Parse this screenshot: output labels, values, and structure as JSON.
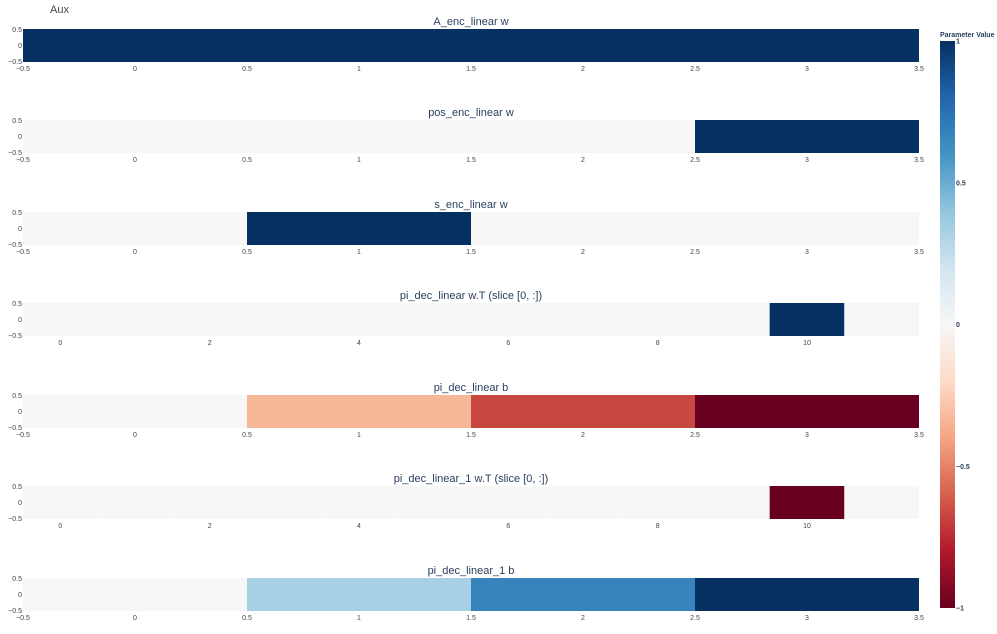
{
  "figure_title": "Aux",
  "chart_data": {
    "type": "heatmap",
    "colorscale_name": "RdBu",
    "colorscale": [
      [
        0.0,
        "#67001f"
      ],
      [
        0.1,
        "#b2182b"
      ],
      [
        0.2,
        "#d6604d"
      ],
      [
        0.3,
        "#f4a582"
      ],
      [
        0.4,
        "#fddbc7"
      ],
      [
        0.5,
        "#f7f7f7"
      ],
      [
        0.6,
        "#d1e5f0"
      ],
      [
        0.7,
        "#92c5de"
      ],
      [
        0.8,
        "#4393c3"
      ],
      [
        0.9,
        "#2166ac"
      ],
      [
        1.0,
        "#053061"
      ]
    ],
    "zrange": [
      -1,
      1
    ],
    "colorbar": {
      "title": "Parameter Value",
      "ticks": [
        {
          "value": 1,
          "label": "1"
        },
        {
          "value": 0.5,
          "label": "0.5"
        },
        {
          "value": 0,
          "label": "0"
        },
        {
          "value": -0.5,
          "label": "−0.5"
        },
        {
          "value": -1,
          "label": "−1"
        }
      ]
    },
    "panels": [
      {
        "title": "A_enc_linear w",
        "xrange": [
          -0.5,
          3.5
        ],
        "xticks": [
          "−0.5",
          "0",
          "0.5",
          "1",
          "1.5",
          "2",
          "2.5",
          "3",
          "3.5"
        ],
        "xtick_values": [
          -0.5,
          0,
          0.5,
          1,
          1.5,
          2,
          2.5,
          3,
          3.5
        ],
        "yticks": [
          "0.5",
          "0",
          "−0.5"
        ],
        "x": [
          -0.5
        ],
        "width": 4,
        "z": [
          1
        ]
      },
      {
        "title": "pos_enc_linear w",
        "xrange": [
          -0.5,
          3.5
        ],
        "xticks": [
          "−0.5",
          "0",
          "0.5",
          "1",
          "1.5",
          "2",
          "2.5",
          "3",
          "3.5"
        ],
        "xtick_values": [
          -0.5,
          0,
          0.5,
          1,
          1.5,
          2,
          2.5,
          3,
          3.5
        ],
        "yticks": [
          "0.5",
          "0",
          "−0.5"
        ],
        "x": [
          -0.5,
          0.5,
          1.5,
          2.5
        ],
        "width": 1,
        "z": [
          0,
          0,
          0,
          1
        ]
      },
      {
        "title": "s_enc_linear w",
        "xrange": [
          -0.5,
          3.5
        ],
        "xticks": [
          "−0.5",
          "0",
          "0.5",
          "1",
          "1.5",
          "2",
          "2.5",
          "3",
          "3.5"
        ],
        "xtick_values": [
          -0.5,
          0,
          0.5,
          1,
          1.5,
          2,
          2.5,
          3,
          3.5
        ],
        "yticks": [
          "0.5",
          "0",
          "−0.5"
        ],
        "x": [
          -0.5,
          0.5,
          1.5,
          2.5
        ],
        "width": 1,
        "z": [
          0,
          1,
          0,
          0
        ]
      },
      {
        "title": "pi_dec_linear w.T (slice [0, :])",
        "xrange": [
          -0.5,
          11.5
        ],
        "xticks": [
          "0",
          "2",
          "4",
          "6",
          "8",
          "10"
        ],
        "xtick_values": [
          0,
          2,
          4,
          6,
          8,
          10
        ],
        "yticks": [
          "0.5",
          "0",
          "−0.5"
        ],
        "x": [
          -0.5,
          0.5,
          1.5,
          2.5,
          3.5,
          4.5,
          5.5,
          6.5,
          7.5,
          8.5,
          9.5,
          10.5
        ],
        "width": 1,
        "z": [
          0,
          0,
          0,
          0,
          0,
          0,
          0,
          0,
          0,
          0,
          1,
          0
        ]
      },
      {
        "title": "pi_dec_linear b",
        "xrange": [
          -0.5,
          3.5
        ],
        "xticks": [
          "−0.5",
          "0",
          "0.5",
          "1",
          "1.5",
          "2",
          "2.5",
          "3",
          "3.5"
        ],
        "xtick_values": [
          -0.5,
          0,
          0.5,
          1,
          1.5,
          2,
          2.5,
          3,
          3.5
        ],
        "yticks": [
          "0.5",
          "0",
          "−0.5"
        ],
        "x": [
          -0.5,
          0.5,
          1.5,
          2.5
        ],
        "width": 1,
        "z": [
          0,
          -0.33,
          -0.67,
          -1
        ]
      },
      {
        "title": "pi_dec_linear_1 w.T (slice [0, :])",
        "xrange": [
          -0.5,
          11.5
        ],
        "xticks": [
          "0",
          "2",
          "4",
          "6",
          "8",
          "10"
        ],
        "xtick_values": [
          0,
          2,
          4,
          6,
          8,
          10
        ],
        "yticks": [
          "0.5",
          "0",
          "−0.5"
        ],
        "x": [
          -0.5,
          0.5,
          1.5,
          2.5,
          3.5,
          4.5,
          5.5,
          6.5,
          7.5,
          8.5,
          9.5,
          10.5
        ],
        "width": 1,
        "z": [
          0,
          0,
          0,
          0,
          0,
          0,
          0,
          0,
          0,
          0,
          -1,
          0
        ]
      },
      {
        "title": "pi_dec_linear_1 b",
        "xrange": [
          -0.5,
          3.5
        ],
        "xticks": [
          "−0.5",
          "0",
          "0.5",
          "1",
          "1.5",
          "2",
          "2.5",
          "3",
          "3.5"
        ],
        "xtick_values": [
          -0.5,
          0,
          0.5,
          1,
          1.5,
          2,
          2.5,
          3,
          3.5
        ],
        "yticks": [
          "0.5",
          "0",
          "−0.5"
        ],
        "x": [
          -0.5,
          0.5,
          1.5,
          2.5
        ],
        "width": 1,
        "z": [
          0,
          0.33,
          0.67,
          1
        ]
      }
    ]
  }
}
